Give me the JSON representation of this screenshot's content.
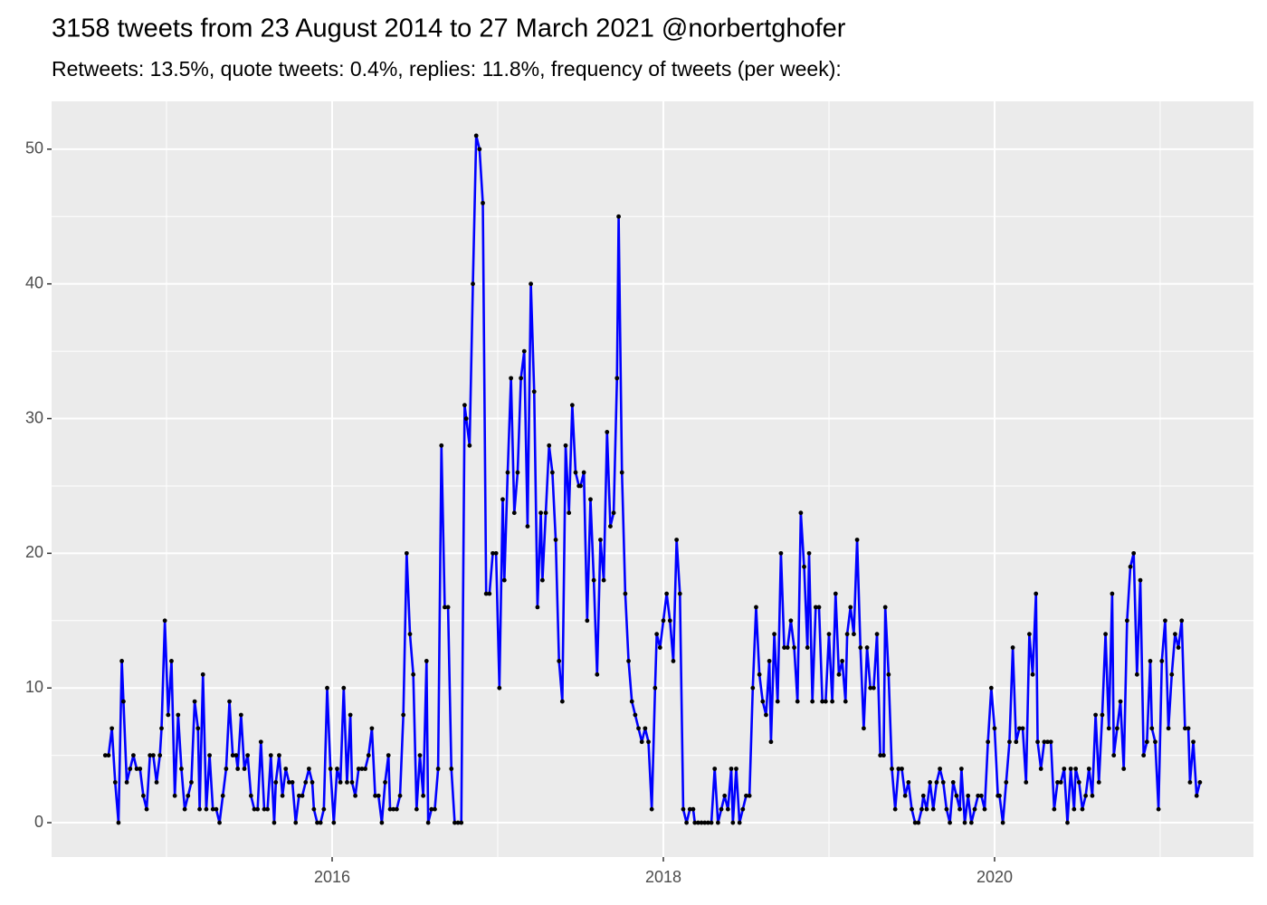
{
  "chart_data": {
    "type": "line",
    "title": "3158 tweets from 23 August 2014 to 27 March 2021 @norbertghofer",
    "subtitle": "Retweets: 13.5%, quote tweets: 0.4%, replies: 11.8%, frequency of tweets (per week):",
    "x": [
      2014.63,
      2014.65,
      2014.67,
      2014.69,
      2014.71,
      2014.73,
      2014.74,
      2014.76,
      2014.78,
      2014.8,
      2014.82,
      2014.84,
      2014.86,
      2014.88,
      2014.9,
      2014.92,
      2014.94,
      2014.96,
      2014.97,
      2014.99,
      2015.01,
      2015.03,
      2015.05,
      2015.07,
      2015.09,
      2015.11,
      2015.13,
      2015.15,
      2015.17,
      2015.19,
      2015.2,
      2015.22,
      2015.24,
      2015.26,
      2015.28,
      2015.3,
      2015.32,
      2015.34,
      2015.36,
      2015.38,
      2015.4,
      2015.42,
      2015.43,
      2015.45,
      2015.47,
      2015.49,
      2015.51,
      2015.53,
      2015.55,
      2015.57,
      2015.59,
      2015.61,
      2015.63,
      2015.65,
      2015.66,
      2015.68,
      2015.7,
      2015.72,
      2015.74,
      2015.76,
      2015.78,
      2015.8,
      2015.82,
      2015.84,
      2015.86,
      2015.88,
      2015.89,
      2015.91,
      2015.93,
      2015.95,
      2015.97,
      2015.99,
      2016.01,
      2016.03,
      2016.05,
      2016.07,
      2016.09,
      2016.11,
      2016.12,
      2016.14,
      2016.16,
      2016.18,
      2016.2,
      2016.22,
      2016.24,
      2016.26,
      2016.28,
      2016.3,
      2016.32,
      2016.34,
      2016.35,
      2016.37,
      2016.39,
      2016.41,
      2016.43,
      2016.45,
      2016.47,
      2016.49,
      2016.51,
      2016.53,
      2016.55,
      2016.57,
      2016.58,
      2016.6,
      2016.62,
      2016.64,
      2016.66,
      2016.68,
      2016.7,
      2016.72,
      2016.74,
      2016.76,
      2016.78,
      2016.8,
      2016.81,
      2016.83,
      2016.85,
      2016.87,
      2016.89,
      2016.91,
      2016.93,
      2016.95,
      2016.97,
      2016.99,
      2017.01,
      2017.03,
      2017.04,
      2017.06,
      2017.08,
      2017.1,
      2017.12,
      2017.14,
      2017.16,
      2017.18,
      2017.2,
      2017.22,
      2017.24,
      2017.26,
      2017.27,
      2017.29,
      2017.31,
      2017.33,
      2017.35,
      2017.37,
      2017.39,
      2017.41,
      2017.43,
      2017.45,
      2017.47,
      2017.49,
      2017.5,
      2017.52,
      2017.54,
      2017.56,
      2017.58,
      2017.6,
      2017.62,
      2017.64,
      2017.66,
      2017.68,
      2017.7,
      2017.72,
      2017.73,
      2017.75,
      2017.77,
      2017.79,
      2017.81,
      2017.83,
      2017.85,
      2017.87,
      2017.89,
      2017.91,
      2017.93,
      2017.95,
      2017.96,
      2017.98,
      2018.0,
      2018.02,
      2018.04,
      2018.06,
      2018.08,
      2018.1,
      2018.12,
      2018.14,
      2018.16,
      2018.18,
      2018.19,
      2018.21,
      2018.23,
      2018.25,
      2018.27,
      2018.29,
      2018.31,
      2018.33,
      2018.35,
      2018.37,
      2018.39,
      2018.41,
      2018.42,
      2018.44,
      2018.46,
      2018.48,
      2018.5,
      2018.52,
      2018.54,
      2018.56,
      2018.58,
      2018.6,
      2018.62,
      2018.64,
      2018.65,
      2018.67,
      2018.69,
      2018.71,
      2018.73,
      2018.75,
      2018.77,
      2018.79,
      2018.81,
      2018.83,
      2018.85,
      2018.87,
      2018.88,
      2018.9,
      2018.92,
      2018.94,
      2018.96,
      2018.98,
      2019.0,
      2019.02,
      2019.04,
      2019.06,
      2019.08,
      2019.1,
      2019.11,
      2019.13,
      2019.15,
      2019.17,
      2019.19,
      2019.21,
      2019.23,
      2019.25,
      2019.27,
      2019.29,
      2019.31,
      2019.33,
      2019.34,
      2019.36,
      2019.38,
      2019.4,
      2019.42,
      2019.44,
      2019.46,
      2019.48,
      2019.5,
      2019.52,
      2019.54,
      2019.56,
      2019.57,
      2019.59,
      2019.61,
      2019.63,
      2019.65,
      2019.67,
      2019.69,
      2019.71,
      2019.73,
      2019.75,
      2019.77,
      2019.79,
      2019.8,
      2019.82,
      2019.84,
      2019.86,
      2019.88,
      2019.9,
      2019.92,
      2019.94,
      2019.96,
      2019.98,
      2020.0,
      2020.02,
      2020.03,
      2020.05,
      2020.07,
      2020.09,
      2020.11,
      2020.13,
      2020.15,
      2020.17,
      2020.19,
      2020.21,
      2020.23,
      2020.25,
      2020.26,
      2020.28,
      2020.3,
      2020.32,
      2020.34,
      2020.36,
      2020.38,
      2020.4,
      2020.42,
      2020.44,
      2020.46,
      2020.48,
      2020.49,
      2020.51,
      2020.53,
      2020.55,
      2020.57,
      2020.59,
      2020.61,
      2020.63,
      2020.65,
      2020.67,
      2020.69,
      2020.71,
      2020.72,
      2020.74,
      2020.76,
      2020.78,
      2020.8,
      2020.82,
      2020.84,
      2020.86,
      2020.88,
      2020.9,
      2020.92,
      2020.94,
      2020.95,
      2020.97,
      2020.99,
      2021.01,
      2021.03,
      2021.05,
      2021.07,
      2021.09,
      2021.11,
      2021.13,
      2021.15,
      2021.17,
      2021.18,
      2021.2,
      2021.22,
      2021.24
    ],
    "values": [
      5,
      5,
      7,
      3,
      0,
      12,
      9,
      3,
      4,
      5,
      4,
      4,
      2,
      1,
      5,
      5,
      3,
      5,
      7,
      15,
      8,
      12,
      2,
      8,
      4,
      1,
      2,
      3,
      9,
      7,
      1,
      11,
      1,
      5,
      1,
      1,
      0,
      2,
      4,
      9,
      5,
      5,
      4,
      8,
      4,
      5,
      2,
      1,
      1,
      6,
      1,
      1,
      5,
      0,
      3,
      5,
      2,
      4,
      3,
      3,
      0,
      2,
      2,
      3,
      4,
      3,
      1,
      0,
      0,
      1,
      10,
      4,
      0,
      4,
      3,
      10,
      3,
      8,
      3,
      2,
      4,
      4,
      4,
      5,
      7,
      2,
      2,
      0,
      3,
      5,
      1,
      1,
      1,
      2,
      8,
      20,
      14,
      11,
      1,
      5,
      2,
      12,
      0,
      1,
      1,
      4,
      28,
      16,
      16,
      4,
      0,
      0,
      0,
      31,
      30,
      28,
      40,
      51,
      50,
      46,
      17,
      17,
      20,
      20,
      10,
      24,
      18,
      26,
      33,
      23,
      26,
      33,
      35,
      22,
      40,
      32,
      16,
      23,
      18,
      23,
      28,
      26,
      21,
      12,
      9,
      28,
      23,
      31,
      26,
      25,
      25,
      26,
      15,
      24,
      18,
      11,
      21,
      18,
      29,
      22,
      23,
      33,
      45,
      26,
      17,
      12,
      9,
      8,
      7,
      6,
      7,
      6,
      1,
      10,
      14,
      13,
      15,
      17,
      15,
      12,
      21,
      17,
      1,
      0,
      1,
      1,
      0,
      0,
      0,
      0,
      0,
      0,
      4,
      0,
      1,
      2,
      1,
      4,
      0,
      4,
      0,
      1,
      2,
      2,
      10,
      16,
      11,
      9,
      8,
      12,
      6,
      14,
      9,
      20,
      13,
      13,
      15,
      13,
      9,
      23,
      19,
      13,
      20,
      9,
      16,
      16,
      9,
      9,
      14,
      9,
      17,
      11,
      12,
      9,
      14,
      16,
      14,
      21,
      13,
      7,
      13,
      10,
      10,
      14,
      5,
      5,
      16,
      11,
      4,
      1,
      4,
      4,
      2,
      3,
      1,
      0,
      0,
      1,
      2,
      1,
      3,
      1,
      3,
      4,
      3,
      1,
      0,
      3,
      2,
      1,
      4,
      0,
      2,
      0,
      1,
      2,
      2,
      1,
      6,
      10,
      7,
      2,
      2,
      0,
      3,
      6,
      13,
      6,
      7,
      7,
      3,
      14,
      11,
      17,
      6,
      4,
      6,
      6,
      6,
      1,
      3,
      3,
      4,
      0,
      4,
      1,
      4,
      3,
      1,
      2,
      4,
      2,
      8,
      3,
      8,
      14,
      7,
      17,
      5,
      7,
      9,
      4,
      15,
      19,
      20,
      11,
      18,
      5,
      6,
      12,
      7,
      6,
      1,
      12,
      15,
      7,
      11,
      14,
      13,
      15,
      7,
      7,
      3,
      6,
      2,
      3
    ],
    "color": "#0000ff",
    "marker_color": "#000000",
    "xlim": [
      2014.306,
      2021.563
    ],
    "xticks": [
      2016,
      2018,
      2020
    ],
    "ylim": [
      -2.55,
      53.55
    ],
    "yticks": [
      0,
      10,
      20,
      30,
      40,
      50
    ],
    "grid": true
  }
}
